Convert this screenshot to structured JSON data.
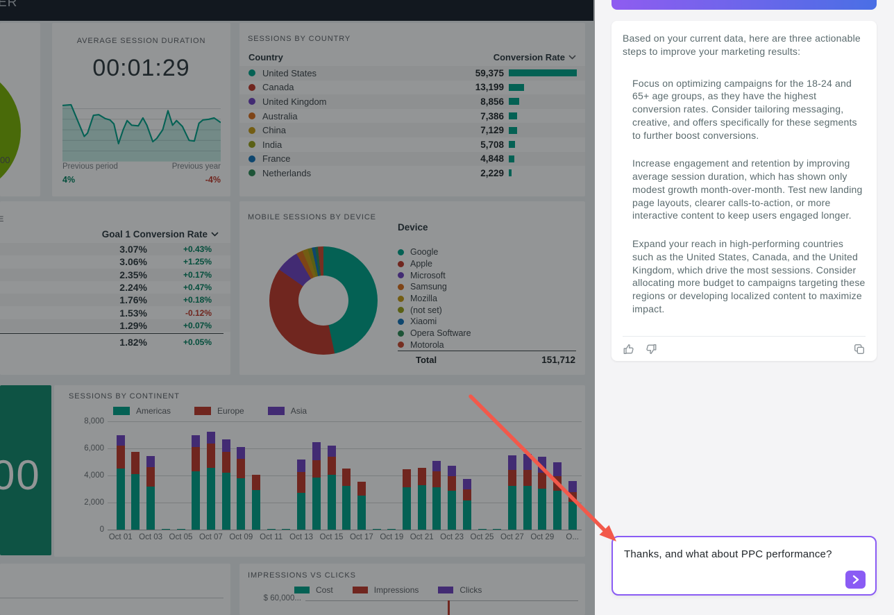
{
  "header": {
    "title_fragment": "ER"
  },
  "colors": {
    "teal": "#00A38A",
    "red": "#C0392B",
    "purple": "#6F42C1",
    "orange": "#D96F1E",
    "gold": "#C79C16",
    "olive": "#9AA11A",
    "blue": "#1372B8",
    "green2": "#2E8B57",
    "motorola": "#CC4A31",
    "lime": "#7CB305",
    "accent_purple": "#8a5cf4",
    "gradient_start": "#8F5CF0",
    "gradient_end": "#4A6FE5",
    "arrow": "#F2594B",
    "scorecard_bg": "#128A6E"
  },
  "widgets": {
    "gauge": {
      "value_fragment": "00"
    },
    "avg_session": {
      "title": "AVERAGE SESSION DURATION",
      "value": "00:01:29",
      "prev_period_label": "Previous period",
      "prev_period_value": "4%",
      "prev_year_label": "Previous year",
      "prev_year_value": "-4%"
    },
    "sessions_by_country": {
      "title": "SESSIONS BY COUNTRY",
      "col_country": "Country",
      "col_value": "Conversion Rate",
      "rows": [
        {
          "country": "United States",
          "value": "59,375",
          "num": 59375,
          "color": "#00A38A"
        },
        {
          "country": "Canada",
          "value": "13,199",
          "num": 13199,
          "color": "#C0392B"
        },
        {
          "country": "United Kingdom",
          "value": "8,856",
          "num": 8856,
          "color": "#6F42C1"
        },
        {
          "country": "Australia",
          "value": "7,386",
          "num": 7386,
          "color": "#D96F1E"
        },
        {
          "country": "China",
          "value": "7,129",
          "num": 7129,
          "color": "#C79C16"
        },
        {
          "country": "India",
          "value": "5,708",
          "num": 5708,
          "color": "#9AA11A"
        },
        {
          "country": "France",
          "value": "4,848",
          "num": 4848,
          "color": "#1372B8"
        },
        {
          "country": "Netherlands",
          "value": "2,229",
          "num": 2229,
          "color": "#2E8B57"
        }
      ]
    },
    "goal_table": {
      "title_fragment": "E",
      "header": "Goal 1 Conversion Rate",
      "rows": [
        {
          "rate": "3.07%",
          "delta": "+0.43%",
          "dir": "up"
        },
        {
          "rate": "3.06%",
          "delta": "+1.25%",
          "dir": "up"
        },
        {
          "rate": "2.35%",
          "delta": "+0.17%",
          "dir": "up"
        },
        {
          "rate": "2.24%",
          "delta": "+0.47%",
          "dir": "up"
        },
        {
          "rate": "1.76%",
          "delta": "+0.18%",
          "dir": "up"
        },
        {
          "rate": "1.53%",
          "delta": "-0.12%",
          "dir": "down"
        },
        {
          "rate": "1.29%",
          "delta": "+0.07%",
          "dir": "up"
        }
      ],
      "total": {
        "rate": "1.82%",
        "delta": "+0.05%",
        "dir": "up"
      }
    },
    "mobile_device": {
      "title": "MOBILE SESSIONS BY DEVICE",
      "legend_header": "Device",
      "total_label": "Total",
      "total_value": "151,712",
      "slices": [
        {
          "label": "Google",
          "color": "#00A38A",
          "end_deg": 168
        },
        {
          "label": "Apple",
          "color": "#C0392B",
          "end_deg": 305
        },
        {
          "label": "Microsoft",
          "color": "#6F42C1",
          "end_deg": 330
        },
        {
          "label": "Samsung",
          "color": "#D96F1E",
          "end_deg": 337
        },
        {
          "label": "Mozilla",
          "color": "#C79C16",
          "end_deg": 343
        },
        {
          "label": "(not set)",
          "color": "#9AA11A",
          "end_deg": 347.5
        },
        {
          "label": "Xiaomi",
          "color": "#1372B8",
          "end_deg": 351
        },
        {
          "label": "Opera Software",
          "color": "#2E8B57",
          "end_deg": 354
        },
        {
          "label": "Motorola",
          "color": "#CC4A31",
          "end_deg": 360
        }
      ]
    },
    "scorecard": {
      "value_fragment": "00"
    },
    "continent": {
      "title": "SESSIONS BY CONTINENT"
    },
    "impressions": {
      "title": "IMPRESSIONS VS CLICKS",
      "legend": [
        "Cost",
        "Impressions",
        "Clicks"
      ],
      "legend_colors": [
        "#00A38A",
        "#C0392B",
        "#6F42C1"
      ],
      "y_top_label": "$ 60,000..."
    }
  },
  "chart_data": [
    {
      "id": "avg_session_sparkline",
      "type": "line",
      "title": "AVERAGE SESSION DURATION",
      "value": "00:01:29",
      "comparison": {
        "previous_period": "4%",
        "previous_year": "-4%"
      },
      "points_norm": [
        [
          0,
          10
        ],
        [
          13,
          9
        ],
        [
          33,
          57
        ],
        [
          38,
          52
        ],
        [
          47,
          25
        ],
        [
          55,
          24
        ],
        [
          65,
          30
        ],
        [
          72,
          32
        ],
        [
          78,
          38
        ],
        [
          85,
          68
        ],
        [
          92,
          47
        ],
        [
          98,
          33
        ],
        [
          105,
          40
        ],
        [
          115,
          41
        ],
        [
          122,
          29
        ],
        [
          128,
          40
        ],
        [
          137,
          65
        ],
        [
          143,
          60
        ],
        [
          152,
          47
        ],
        [
          160,
          18
        ],
        [
          167,
          40
        ],
        [
          173,
          33
        ],
        [
          182,
          42
        ],
        [
          192,
          63
        ],
        [
          200,
          64
        ],
        [
          207,
          37
        ],
        [
          213,
          32
        ],
        [
          222,
          31
        ],
        [
          230,
          29
        ],
        [
          240,
          36
        ]
      ]
    },
    {
      "id": "sessions_by_continent",
      "type": "bar",
      "stacked": true,
      "ylim": [
        0,
        8000
      ],
      "yticks": [
        0,
        2000,
        4000,
        6000,
        8000
      ],
      "ytick_labels": [
        "0",
        "2,000",
        "4,000",
        "6,000",
        "8,000"
      ],
      "categories": [
        "Oct 01",
        "Oct 02",
        "Oct 03",
        "Oct 04",
        "Oct 05",
        "Oct 06",
        "Oct 07",
        "Oct 08",
        "Oct 09",
        "Oct 10",
        "Oct 11",
        "Oct 12",
        "Oct 13",
        "Oct 14",
        "Oct 15",
        "Oct 16",
        "Oct 17",
        "Oct 18",
        "Oct 19",
        "Oct 20",
        "Oct 21",
        "Oct 22",
        "Oct 23",
        "Oct 24",
        "Oct 25",
        "Oct 26",
        "Oct 27",
        "Oct 28",
        "Oct 29",
        "Oct 30",
        "Oct 31"
      ],
      "x_tick_labels": [
        "Oct 01",
        "Oct 03",
        "Oct 05",
        "Oct 07",
        "Oct 09",
        "Oct 11",
        "Oct 13",
        "Oct 15",
        "Oct 17",
        "Oct 19",
        "Oct 21",
        "Oct 23",
        "Oct 25",
        "Oct 27",
        "Oct 29",
        "O..."
      ],
      "series": [
        {
          "name": "Americas",
          "color": "#00A38A",
          "values": [
            4500,
            4100,
            3200,
            60,
            60,
            4300,
            4550,
            4200,
            3800,
            2950,
            60,
            60,
            2750,
            3850,
            4050,
            3230,
            2500,
            60,
            60,
            3110,
            3280,
            3110,
            2890,
            2160,
            60,
            60,
            3230,
            3230,
            3010,
            2890,
            2040
          ]
        },
        {
          "name": "Europe",
          "color": "#C0392B",
          "values": [
            1700,
            1650,
            1400,
            0,
            0,
            1800,
            1800,
            1550,
            1450,
            1100,
            0,
            0,
            1500,
            1300,
            1350,
            1270,
            1070,
            0,
            0,
            1350,
            1280,
            1190,
            1060,
            820,
            0,
            0,
            1190,
            1190,
            1190,
            1070,
            760
          ]
        },
        {
          "name": "Asia",
          "color": "#6F42C1",
          "values": [
            750,
            0,
            850,
            0,
            0,
            850,
            850,
            900,
            850,
            0,
            0,
            0,
            950,
            1280,
            800,
            0,
            0,
            0,
            0,
            0,
            0,
            800,
            780,
            760,
            0,
            0,
            1080,
            1190,
            1200,
            990,
            770
          ]
        }
      ],
      "legend_position": "top"
    },
    {
      "id": "mobile_sessions_by_device",
      "type": "pie",
      "labels": [
        "Google",
        "Apple",
        "Microsoft",
        "Samsung",
        "Mozilla",
        "(not set)",
        "Xiaomi",
        "Opera Software",
        "Motorola"
      ],
      "approx_degrees": [
        168,
        137,
        25,
        7,
        6,
        4.5,
        3.5,
        3,
        6
      ],
      "total": 151712
    },
    {
      "id": "sessions_by_country_bars",
      "type": "bar",
      "categories": [
        "United States",
        "Canada",
        "United Kingdom",
        "Australia",
        "China",
        "India",
        "France",
        "Netherlands"
      ],
      "values": [
        59375,
        13199,
        8856,
        7386,
        7129,
        5708,
        4848,
        2229
      ]
    }
  ],
  "chat": {
    "response": {
      "intro": "Based on your current data, here are three actionable steps to improve your marketing results:",
      "paragraphs": [
        "Focus on optimizing campaigns for the 18-24 and 65+ age groups, as they have the highest conversion rates. Consider tailoring messaging, creative, and offers specifically for these segments to further boost conversions.",
        "Increase engagement and retention by improving average session duration, which has shown only modest growth month-over-month. Test new landing page layouts, clearer calls-to-action, or more interactive content to keep users engaged longer.",
        "Expand your reach in high-performing countries such as the United States, Canada, and the United Kingdom, which drive the most sessions. Consider allocating more budget to campaigns targeting these regions or developing localized content to maximize impact."
      ]
    },
    "input": {
      "value": "Thanks, and what about PPC performance?"
    }
  }
}
